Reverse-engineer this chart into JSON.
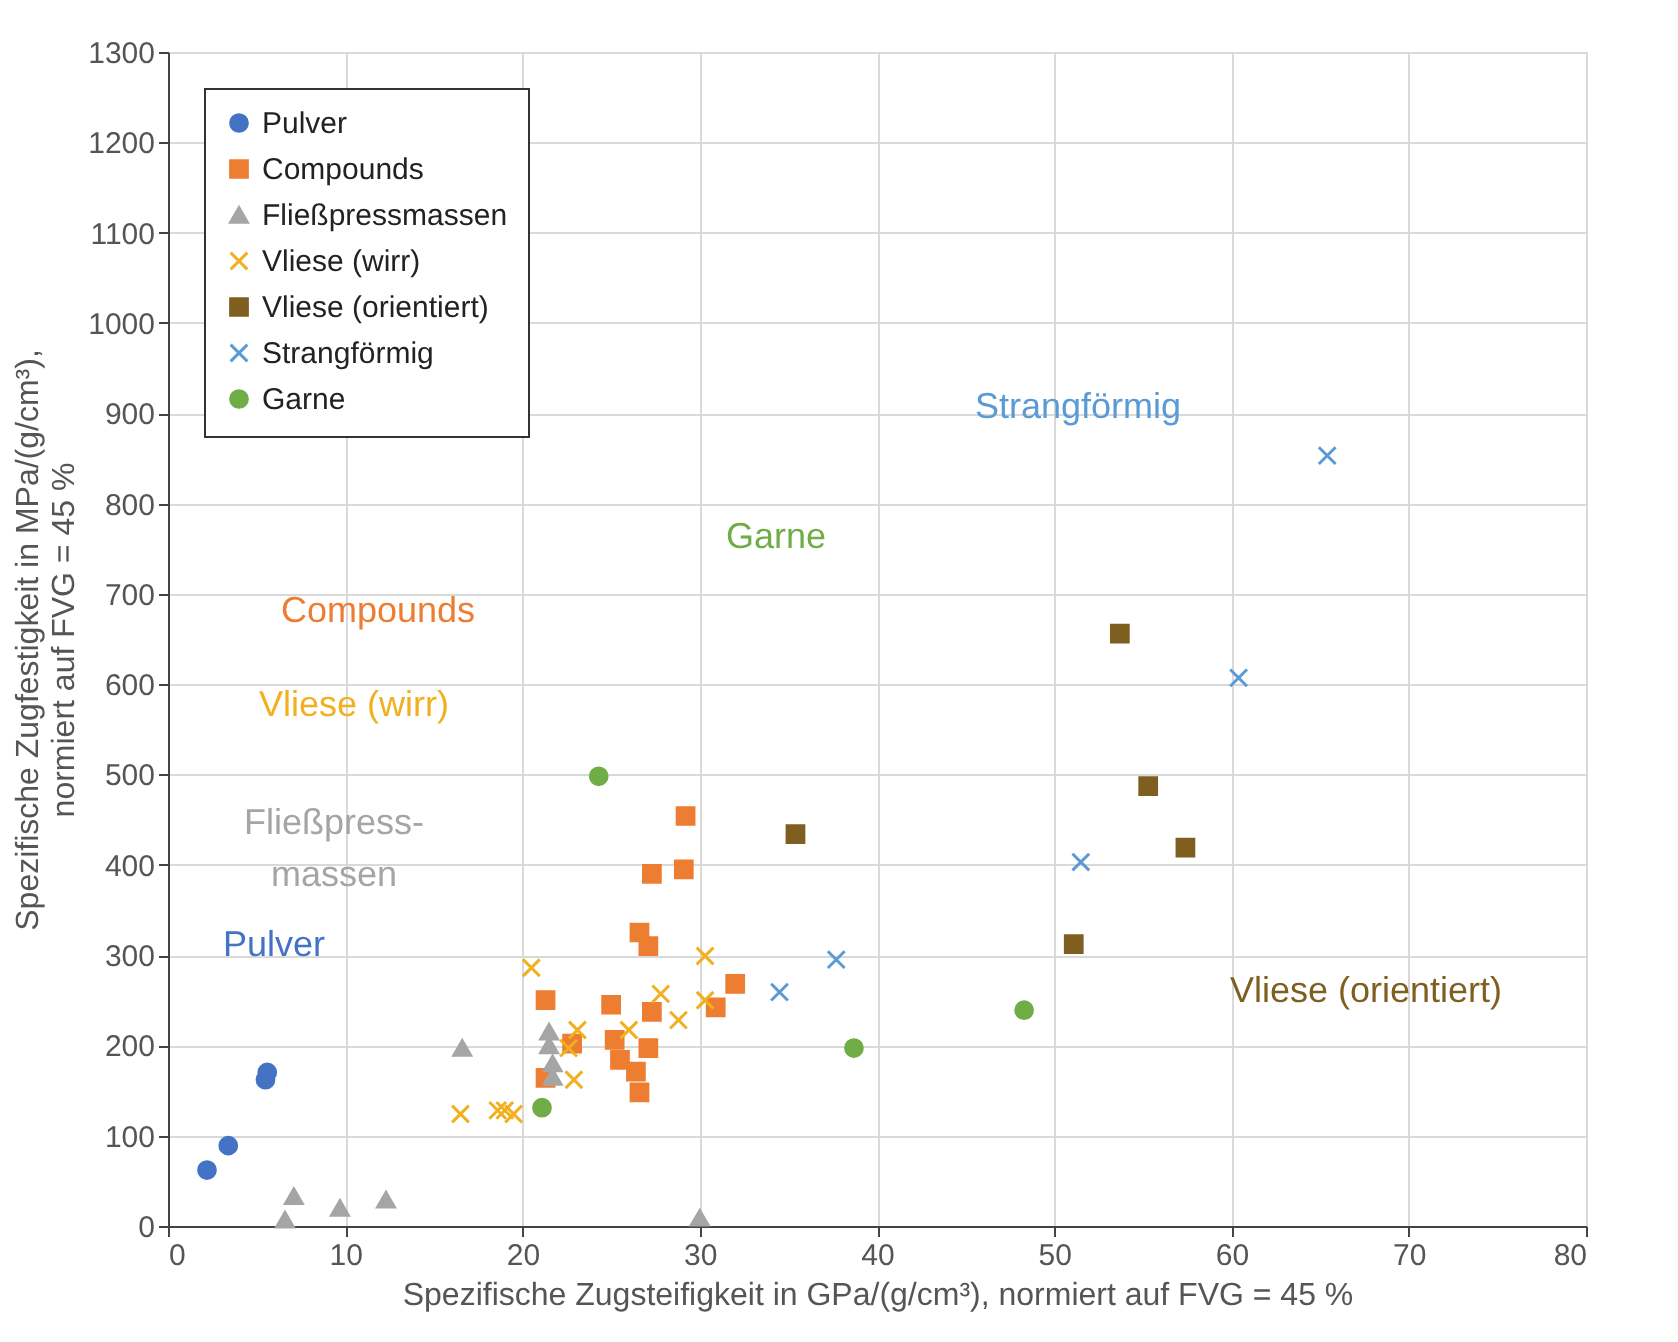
{
  "chart_data": {
    "type": "scatter",
    "xlabel": "Spezifische Zugsteifigkeit in GPa/(g/cm³), normiert auf FVG = 45 %",
    "ylabel": "Spezifische Zugfestigkeit in MPa/(g/cm³),\nnormiert auf FVG = 45 %",
    "xlim": [
      0,
      80
    ],
    "xticks": [
      0,
      10,
      20,
      30,
      40,
      50,
      60,
      70,
      80
    ],
    "ylim": [
      0,
      1300
    ],
    "yticks": [
      0,
      100,
      200,
      300,
      400,
      500,
      600,
      700,
      800,
      900,
      {
        "value": 1000,
        "label": "1000"
      },
      {
        "value": 1100,
        "label": "1100"
      },
      {
        "value": 1200,
        "label": "1200"
      },
      {
        "value": 1300,
        "label": "1300"
      }
    ],
    "grid": true,
    "legend": "top left",
    "series": [
      {
        "name": "Pulver",
        "color": "#4472c4",
        "marker": "circle",
        "x": [
          2.2,
          3.4,
          5.5,
          5.6
        ],
        "values": [
          62,
          89,
          162,
          170
        ]
      },
      {
        "name": "Compounds",
        "color": "#ed7d31",
        "marker": "square",
        "x": [
          29.2,
          27.3,
          29.1,
          26.6,
          27.1,
          32.0,
          30.9,
          21.3,
          25.0,
          27.3,
          25.2,
          27.1,
          25.5,
          26.4,
          26.6,
          22.8,
          21.3
        ],
        "values": [
          454,
          390,
          395,
          325,
          310,
          268,
          242,
          250,
          245,
          237,
          206,
          197,
          184,
          171,
          148,
          202,
          164
        ]
      },
      {
        "name": "Fließpressmassen",
        "color": "#a5a5a5",
        "marker": "triangle",
        "x": [
          6.6,
          7.1,
          9.7,
          12.3,
          16.6,
          21.5,
          21.5,
          21.7,
          21.7,
          30.0
        ],
        "values": [
          7,
          33,
          20,
          29,
          197,
          215,
          200,
          180,
          165,
          9
        ]
      },
      {
        "name": "Vliese (wirr)",
        "color": "#f0b020",
        "marker": "cross",
        "x": [
          16.5,
          18.6,
          19.0,
          19.5,
          20.5,
          23.1,
          22.6,
          22.9,
          26.0,
          27.8,
          28.8,
          30.3,
          30.3
        ],
        "values": [
          124,
          128,
          128,
          124,
          286,
          217,
          197,
          162,
          217,
          257,
          228,
          250,
          299
        ]
      },
      {
        "name": "Vliese (orientiert)",
        "color": "#7f5f20",
        "marker": "square",
        "x": [
          35.4,
          51.1,
          53.7,
          55.3,
          57.4
        ],
        "values": [
          434,
          312,
          656,
          487,
          419
        ]
      },
      {
        "name": "Strangförmig",
        "color": "#5b9bd5",
        "marker": "cross",
        "x": [
          34.5,
          37.7,
          51.5,
          60.4,
          65.4
        ],
        "values": [
          259,
          295,
          403,
          607,
          853
        ]
      },
      {
        "name": "Garne",
        "color": "#70ad47",
        "marker": "circle",
        "x": [
          24.3,
          21.1,
          38.7,
          48.3
        ],
        "values": [
          498,
          131,
          197,
          239
        ]
      }
    ],
    "annotations": [
      "Pulver",
      "Fließpress-\nmassen",
      "Vliese (wirr)",
      "Compounds",
      "Garne",
      "Strangförmig",
      "Vliese (orientiert)"
    ]
  }
}
